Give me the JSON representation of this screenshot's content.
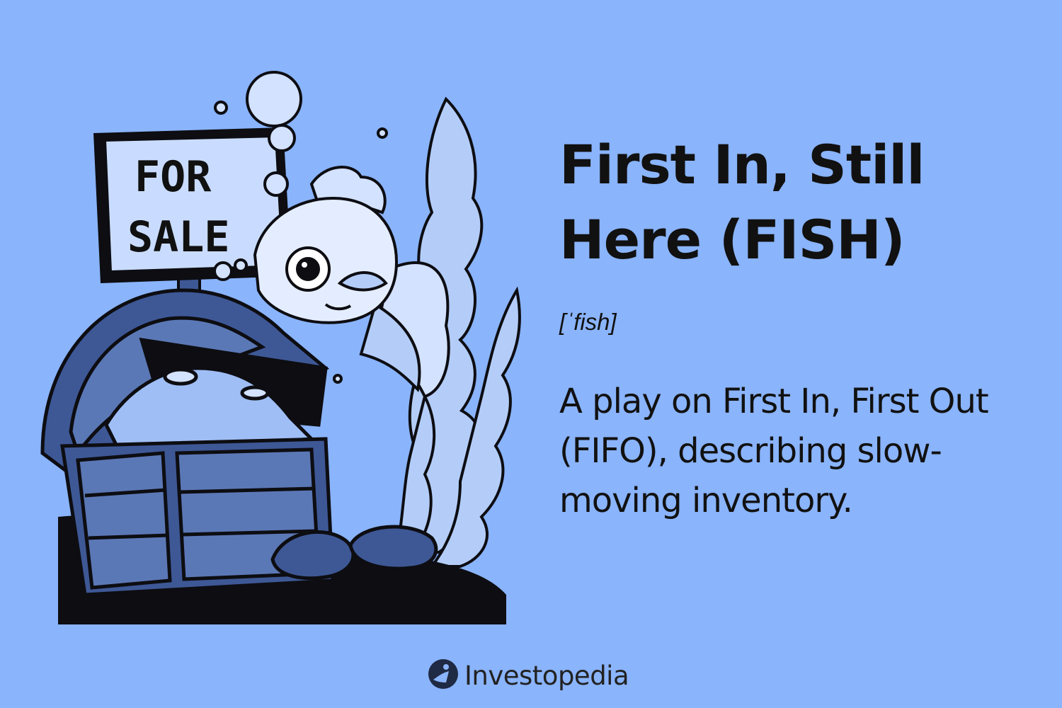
{
  "illustration": {
    "sign_line1": "FOR",
    "sign_line2": "SALE"
  },
  "term": {
    "title_line1": "First In, Still",
    "title_line2": "Here (FISH)",
    "pronunciation": "[ˈfish]",
    "definition": "A play on First In, First Out (FIFO), describing slow-moving inventory."
  },
  "brand": {
    "name": "Investopedia"
  },
  "colors": {
    "background": "#8ab4fb",
    "text": "#111111",
    "ink": "#0d0d12",
    "wood": "#3e5896"
  }
}
